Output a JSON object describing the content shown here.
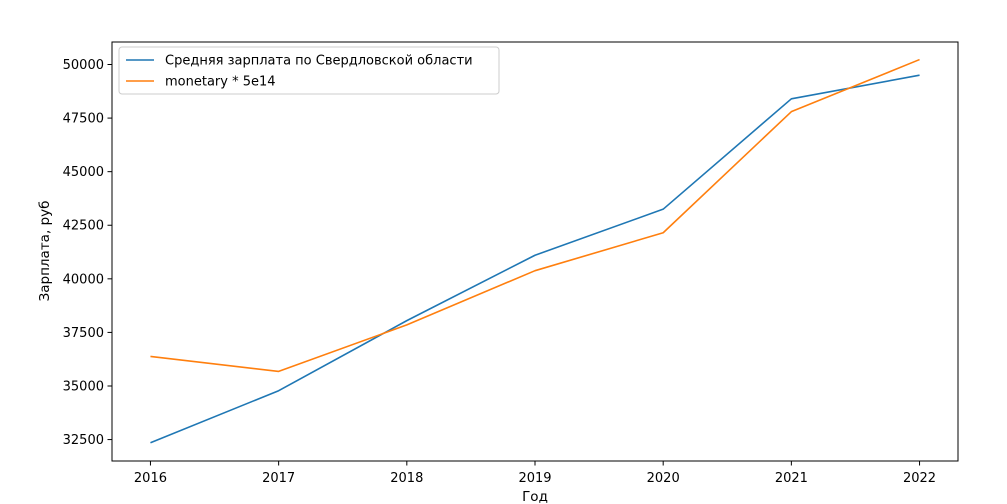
{
  "chart_data": {
    "type": "line",
    "title": "",
    "xlabel": "Год",
    "ylabel": "Зарплата, руб",
    "x": [
      2016,
      2017,
      2018,
      2019,
      2020,
      2021,
      2022
    ],
    "xticks": [
      "2016",
      "2017",
      "2018",
      "2019",
      "2020",
      "2021",
      "2022"
    ],
    "yticks": [
      "32500",
      "35000",
      "37500",
      "40000",
      "42500",
      "45000",
      "47500",
      "50000"
    ],
    "xlim": [
      2015.7,
      2022.3
    ],
    "ylim": [
      31500,
      51050
    ],
    "grid": false,
    "legend_position": "top-left",
    "series": [
      {
        "name": "Средняя зарплата по Свердловской области",
        "color": "#1f77b4",
        "values": [
          32350,
          34780,
          38050,
          41100,
          43250,
          48400,
          49500
        ]
      },
      {
        "name": "monetary * 5e14",
        "color": "#ff7f0e",
        "values": [
          36380,
          35680,
          37850,
          40380,
          42150,
          47800,
          50230
        ]
      }
    ]
  }
}
